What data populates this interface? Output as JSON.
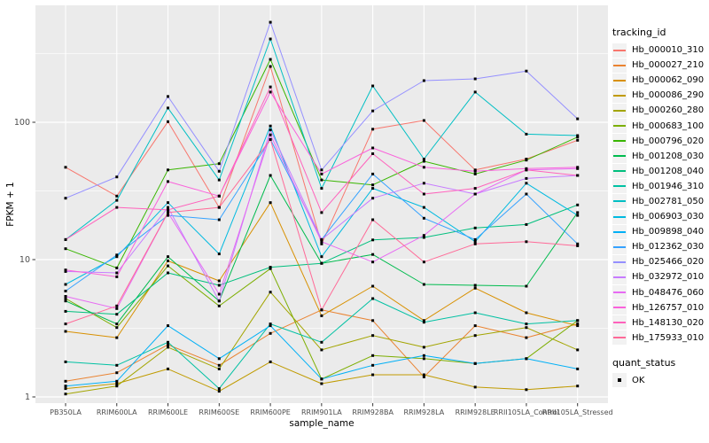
{
  "figure": {
    "background": "#FFFFFF",
    "panel_background": "#EBEBEB",
    "gridline_color": "#FFFFFF",
    "axis_text_color": "#4D4D4D",
    "axis_title_color": "#000000",
    "point_color": "#000000"
  },
  "legend": {
    "tracking_title": "tracking_id",
    "quant_title": "quant_status",
    "quant_items": [
      {
        "label": "OK"
      }
    ]
  },
  "chart_data": {
    "type": "line",
    "title": "",
    "xlabel": "sample_name",
    "ylabel": "FPKM + 1",
    "yscale": "log10",
    "ylim": [
      0.9,
      700
    ],
    "grid": "major-white-on-gray with half-decade minors",
    "legend_position": "right",
    "y_ticks": [
      {
        "label": "100",
        "value": 100
      },
      {
        "label": "10",
        "value": 10
      },
      {
        "label": "1",
        "value": 1
      }
    ],
    "x_categories": [
      "PB350LA",
      "RRIM600LA",
      "RRIM600LE",
      "RRIM600SE",
      "RRIM600PE",
      "RRIM901LA",
      "RRIM928BA",
      "RRIM928LA",
      "RRIM928LE",
      "RRII105LA_Control",
      "RRII105LA_Stressed"
    ],
    "point_marker": "small black square (quant_status OK)",
    "series": [
      {
        "name": "Hb_000010_310",
        "color": "#F8766D",
        "values": [
          47,
          29,
          101,
          24,
          255,
          13,
          89,
          103,
          45,
          54,
          74
        ]
      },
      {
        "name": "Hb_000027_210",
        "color": "#EA8331",
        "values": [
          1.3,
          1.5,
          2.4,
          1.7,
          2.9,
          4.3,
          3.6,
          1.4,
          3.3,
          2.7,
          3.4
        ]
      },
      {
        "name": "Hb_000062_090",
        "color": "#D89000",
        "values": [
          3.0,
          2.7,
          9.8,
          7.0,
          26,
          3.9,
          6.4,
          3.6,
          6.2,
          4.1,
          3.3
        ]
      },
      {
        "name": "Hb_000086_290",
        "color": "#C09B00",
        "values": [
          1.15,
          1.25,
          1.6,
          1.1,
          1.8,
          1.25,
          1.45,
          1.45,
          1.18,
          1.13,
          1.2
        ]
      },
      {
        "name": "Hb_000260_280",
        "color": "#A3A500",
        "values": [
          1.05,
          1.2,
          2.3,
          1.6,
          5.8,
          2.2,
          2.8,
          2.3,
          2.8,
          3.2,
          2.2
        ]
      },
      {
        "name": "Hb_000683_100",
        "color": "#7CAE00",
        "values": [
          5.2,
          3.2,
          9.0,
          4.6,
          8.6,
          1.35,
          2.0,
          1.9,
          1.75,
          1.9,
          3.6
        ]
      },
      {
        "name": "Hb_000796_020",
        "color": "#39B600",
        "values": [
          12,
          8.7,
          45,
          50,
          287,
          38,
          35,
          52,
          42,
          53,
          78
        ]
      },
      {
        "name": "Hb_001208_030",
        "color": "#00BB4E",
        "values": [
          5.0,
          3.4,
          10.5,
          5.0,
          41,
          9.4,
          10.9,
          6.6,
          6.5,
          6.4,
          22
        ]
      },
      {
        "name": "Hb_001208_040",
        "color": "#00BF7D",
        "values": [
          4.2,
          4.0,
          8.0,
          6.5,
          8.8,
          9.4,
          13.9,
          14.5,
          17,
          18,
          25
        ]
      },
      {
        "name": "Hb_001946_310",
        "color": "#00C1A3",
        "values": [
          1.8,
          1.7,
          2.5,
          1.15,
          3.4,
          2.5,
          5.2,
          3.5,
          4.1,
          3.4,
          3.6
        ]
      },
      {
        "name": "Hb_002781_050",
        "color": "#00BFC4",
        "values": [
          14,
          27,
          127,
          38,
          404,
          33,
          184,
          54,
          166,
          82,
          80
        ]
      },
      {
        "name": "Hb_006903_030",
        "color": "#00BAE0",
        "values": [
          6.6,
          10.5,
          26,
          11,
          94,
          10.5,
          33,
          24,
          13.5,
          36,
          21
        ]
      },
      {
        "name": "Hb_009898_040",
        "color": "#00B0F6",
        "values": [
          1.2,
          1.3,
          3.3,
          1.9,
          3.3,
          1.35,
          1.7,
          2.0,
          1.75,
          1.9,
          1.6
        ]
      },
      {
        "name": "Hb_012362_030",
        "color": "#35A2FF",
        "values": [
          5.9,
          10.8,
          21,
          19.5,
          75,
          14,
          42,
          20,
          14,
          30,
          13
        ]
      },
      {
        "name": "Hb_025466_020",
        "color": "#9590FF",
        "values": [
          28,
          40,
          154,
          44,
          535,
          45,
          121,
          201,
          207,
          236,
          106
        ]
      },
      {
        "name": "Hb_032972_010",
        "color": "#C77CFF",
        "values": [
          8.2,
          8.0,
          24,
          5.0,
          88,
          14,
          28,
          36,
          30,
          39,
          41
        ]
      },
      {
        "name": "Hb_048476_060",
        "color": "#E76BF3",
        "values": [
          5.4,
          4.4,
          22,
          5.6,
          81,
          13.5,
          9.6,
          15,
          30,
          45,
          46
        ]
      },
      {
        "name": "Hb_126757_010",
        "color": "#FA62DB",
        "values": [
          8.4,
          7.5,
          37,
          29,
          166,
          42,
          65,
          47,
          44,
          46,
          47
        ]
      },
      {
        "name": "Hb_148130_020",
        "color": "#FF62BC",
        "values": [
          14,
          24,
          23,
          29,
          181,
          22,
          59,
          30,
          33,
          45,
          41
        ]
      },
      {
        "name": "Hb_175933_010",
        "color": "#FF6A98",
        "values": [
          3.4,
          4.6,
          22,
          24,
          75,
          4.3,
          19.5,
          9.6,
          13,
          13.5,
          12.6
        ]
      }
    ]
  }
}
